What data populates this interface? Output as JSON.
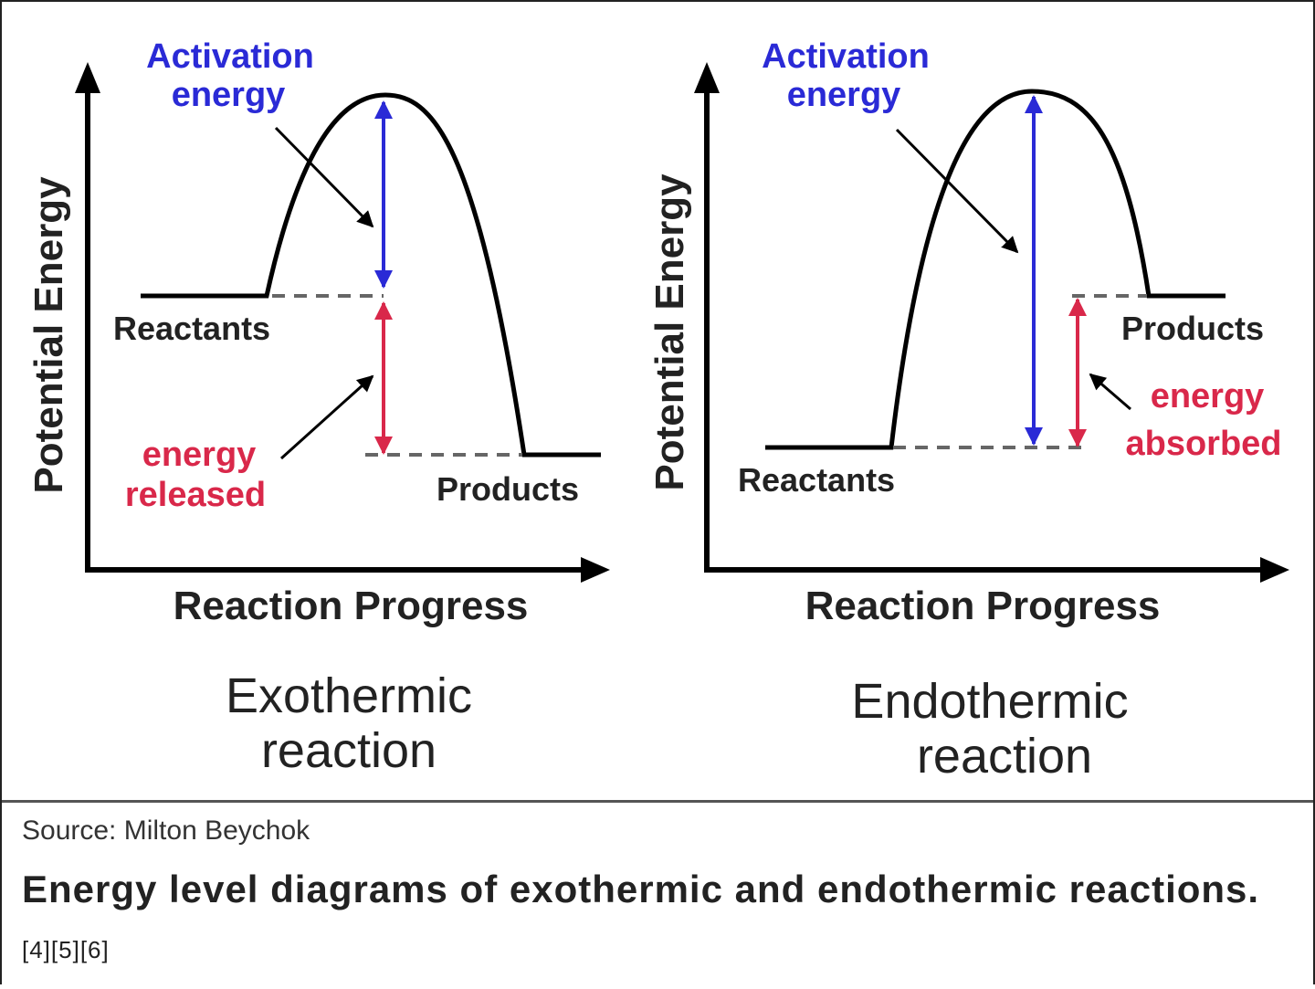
{
  "colors": {
    "activation": "#2a2ad6",
    "energy_change": "#d9284a",
    "curve": "#000000",
    "dashed": "#666666",
    "text": "#222222"
  },
  "left": {
    "activation_label": [
      "Activation",
      "energy"
    ],
    "y_axis_label": "Potential Energy",
    "x_axis_label": "Reaction Progress",
    "reactants_label": "Reactants",
    "products_label": "Products",
    "energy_change_label": [
      "energy",
      "released"
    ],
    "title": [
      "Exothermic",
      "reaction"
    ]
  },
  "right": {
    "activation_label": [
      "Activation",
      "energy"
    ],
    "y_axis_label": "Potential Energy",
    "x_axis_label": "Reaction Progress",
    "reactants_label": "Reactants",
    "products_label": "Products",
    "energy_change_label": [
      "energy",
      "absorbed"
    ],
    "title": [
      "Endothermic",
      "reaction"
    ]
  },
  "footer": {
    "source": "Source: Milton Beychok",
    "caption": "Energy level diagrams of exothermic and endothermic reactions.",
    "refs": "[4][5][6]"
  }
}
